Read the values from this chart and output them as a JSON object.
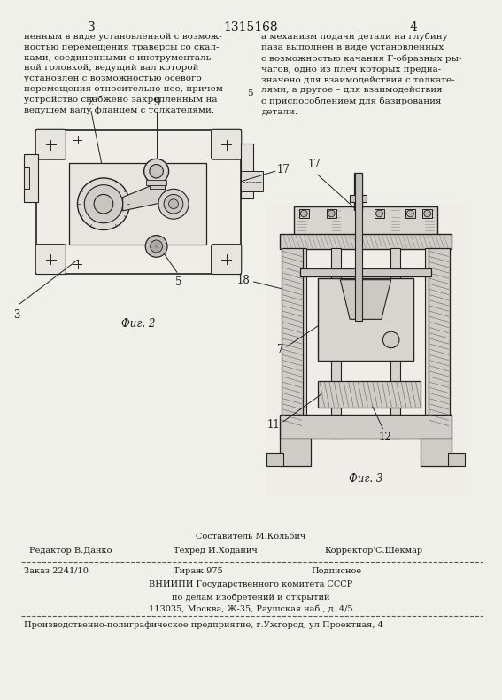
{
  "page_width": 7.07,
  "page_height": 10.0,
  "bg_color": "#f0f0eb",
  "header_page_left": "3",
  "header_title": "1315168",
  "header_page_right": "4",
  "col_left_text": "ненным в виде установленной с возмож-\nностью перемещения траверсы со скал-\nками, соединенными с инструменталь-\nной головкой, ведущий вал которой\nустановлен с возможностью осевого\nперемещения относительно нее, причем\nустройство снабжено закрепленным на\nведущем валу фланцем с толкателями,",
  "col_right_text": "а механизм подачи детали на глубину\nпаза выполнен в виде установленных\nс возможностью качания Г-образных ры-\nчагов, одно из плеч которых предна-\nзначено для взаимодействия с толкате-\nлями, а другое – для взаимодействия\nс приспособлением для базирования\nдетали.",
  "fig2_label": "Фиг. 2",
  "fig3_label": "Фиг. 3",
  "footer_sestavitel": "Составитель М.Кольбич",
  "footer_redaktor": "Редактор В.Данко",
  "footer_tekhred": "Техред И.Ходанич",
  "footer_korrektor": "Корректор'С.Шекмар",
  "footer_zakaz": "Заказ 2241/10",
  "footer_tirazh": "Тираж 975",
  "footer_podpisnoe": "Подписное",
  "footer_vniiipi": "ВНИИПИ Государственного комитета СССР",
  "footer_po_delam": "по делам изобретений и открытий",
  "footer_address": "113035, Москва, Ж-35, Раушская наб., д. 4/5",
  "footer_proizv": "Производственно-полиграфическое предприятие, г.Ужгород, ул.Проектная, 4",
  "text_color": "#1a1a1a",
  "draw_color": "#222222",
  "hatch_color": "#444444",
  "font_size_body": 7.5,
  "font_size_header": 10,
  "font_size_footer": 7.0,
  "font_size_label": 8.5
}
